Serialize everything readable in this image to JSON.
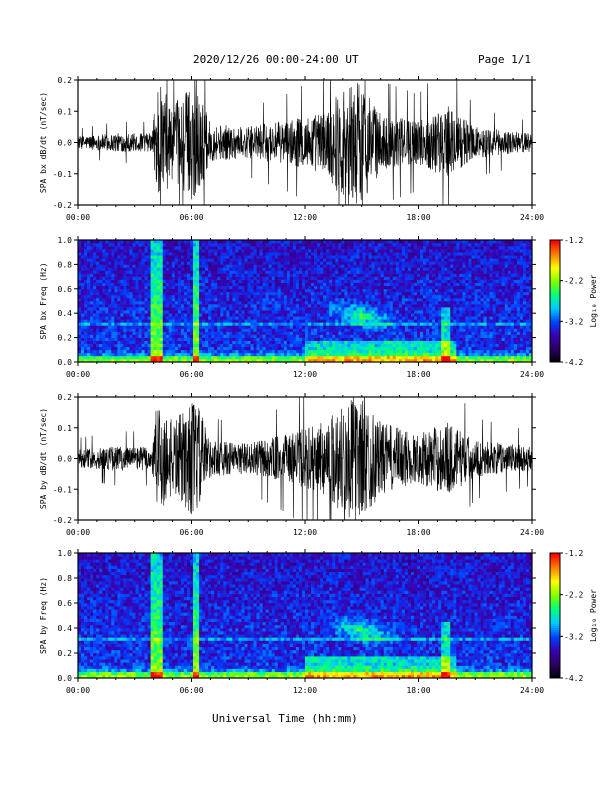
{
  "header": {
    "title": "2020/12/26  00:00-24:00 UT",
    "page": "Page 1/1"
  },
  "footer": {
    "xlabel": "Universal Time (hh:mm)"
  },
  "colors": {
    "trace": "#000000",
    "colormap": [
      "#000000",
      "#2a0060",
      "#3a00b0",
      "#0040ff",
      "#00c8ff",
      "#00ff80",
      "#80ff00",
      "#ffff00",
      "#ff8000",
      "#ff0000"
    ]
  },
  "chart_data": [
    {
      "type": "line",
      "ylabel": "SPA bx dB/dt (nT/sec)",
      "ylim": [
        -0.2,
        0.2
      ],
      "yticks": [
        "0.2",
        "0.1",
        "0.0",
        "-0.1",
        "-0.2"
      ],
      "xlim": [
        0,
        24
      ],
      "xticks": [
        "00:00",
        "06:00",
        "12:00",
        "18:00",
        "24:00"
      ],
      "activity": [
        {
          "t": 0,
          "amp": 0.02
        },
        {
          "t": 2,
          "amp": 0.03
        },
        {
          "t": 3.9,
          "amp": 0.03
        },
        {
          "t": 4.2,
          "amp": 0.2
        },
        {
          "t": 5.0,
          "amp": 0.12
        },
        {
          "t": 6.2,
          "amp": 0.2
        },
        {
          "t": 7,
          "amp": 0.06
        },
        {
          "t": 9,
          "amp": 0.05
        },
        {
          "t": 11,
          "amp": 0.07
        },
        {
          "t": 13,
          "amp": 0.1
        },
        {
          "t": 14.2,
          "amp": 0.2
        },
        {
          "t": 15,
          "amp": 0.2
        },
        {
          "t": 16,
          "amp": 0.09
        },
        {
          "t": 18,
          "amp": 0.07
        },
        {
          "t": 19.5,
          "amp": 0.12
        },
        {
          "t": 21,
          "amp": 0.05
        },
        {
          "t": 24,
          "amp": 0.03
        }
      ]
    },
    {
      "type": "heatmap",
      "ylabel": "SPA bx Freq (Hz)",
      "ylim": [
        0.0,
        1.0
      ],
      "yticks": [
        "1.0",
        "0.8",
        "0.6",
        "0.4",
        "0.2",
        "0.0"
      ],
      "xlim": [
        0,
        24
      ],
      "xticks": [
        "00:00",
        "06:00",
        "12:00",
        "18:00",
        "24:00"
      ],
      "colorbar": {
        "label": "Log₁₀ Power",
        "ticks": [
          "-1.2",
          "-2.2",
          "-3.2",
          "-4.2"
        ],
        "range": [
          -4.2,
          -1.2
        ]
      }
    },
    {
      "type": "line",
      "ylabel": "SPA by dB/dt (nT/sec)",
      "ylim": [
        -0.2,
        0.2
      ],
      "yticks": [
        "0.2",
        "0.1",
        "0.0",
        "-0.1",
        "-0.2"
      ],
      "xlim": [
        0,
        24
      ],
      "xticks": [
        "00:00",
        "06:00",
        "12:00",
        "18:00",
        "24:00"
      ],
      "activity": [
        {
          "t": 0,
          "amp": 0.03
        },
        {
          "t": 2,
          "amp": 0.04
        },
        {
          "t": 3.9,
          "amp": 0.04
        },
        {
          "t": 4.2,
          "amp": 0.2
        },
        {
          "t": 5.0,
          "amp": 0.12
        },
        {
          "t": 6.2,
          "amp": 0.2
        },
        {
          "t": 7,
          "amp": 0.06
        },
        {
          "t": 9,
          "amp": 0.05
        },
        {
          "t": 11,
          "amp": 0.08
        },
        {
          "t": 13,
          "amp": 0.12
        },
        {
          "t": 14.2,
          "amp": 0.2
        },
        {
          "t": 15,
          "amp": 0.2
        },
        {
          "t": 16,
          "amp": 0.12
        },
        {
          "t": 18,
          "amp": 0.08
        },
        {
          "t": 19.5,
          "amp": 0.12
        },
        {
          "t": 21,
          "amp": 0.06
        },
        {
          "t": 24,
          "amp": 0.04
        }
      ]
    },
    {
      "type": "heatmap",
      "ylabel": "SPA by Freq (Hz)",
      "ylim": [
        0.0,
        1.0
      ],
      "yticks": [
        "1.0",
        "0.8",
        "0.6",
        "0.4",
        "0.2",
        "0.0"
      ],
      "xlim": [
        0,
        24
      ],
      "xticks": [
        "00:00",
        "06:00",
        "12:00",
        "18:00",
        "24:00"
      ],
      "colorbar": {
        "label": "Log₁₀ Power",
        "ticks": [
          "-1.2",
          "-2.2",
          "-3.2",
          "-4.2"
        ],
        "range": [
          -4.2,
          -1.2
        ]
      }
    }
  ]
}
